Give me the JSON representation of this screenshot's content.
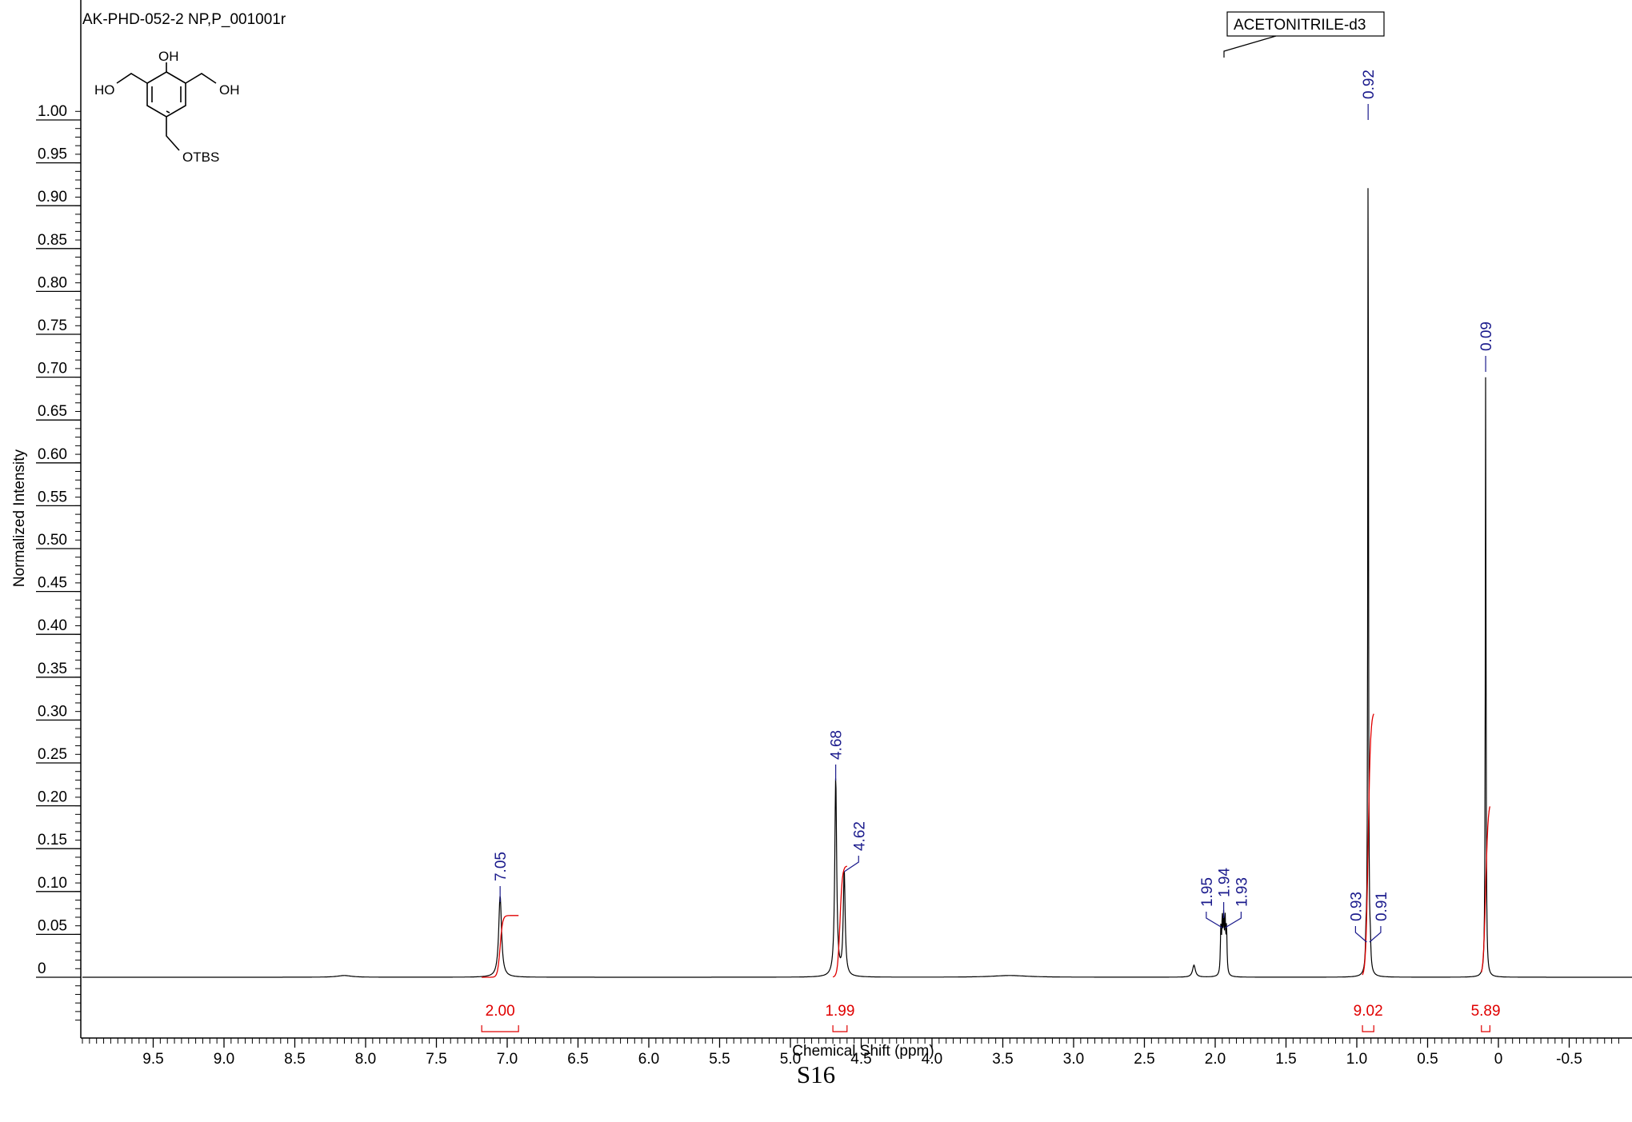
{
  "sample_label": "AK-PHD-052-2 NP,P_001001r",
  "solvent_label": "ACETONITRILE-d3",
  "page_label": "S16",
  "structure": {
    "oh_top": "OH",
    "ho_left": "HO",
    "oh_right": "OH",
    "otbs": "OTBS"
  },
  "colors": {
    "spectrum": "#000000",
    "peak_labels": "#1a1a8c",
    "integrals": "#e00000"
  },
  "chart_data": {
    "type": "line",
    "xlabel": "Chemical Shift (ppm)",
    "ylabel": "Normalized Intensity",
    "xlim": [
      10.0,
      -0.9
    ],
    "ylim": [
      -0.08,
      1.0
    ],
    "x_reversed": true,
    "x_ticks": [
      {
        "value": 9.5,
        "label": "9.5"
      },
      {
        "value": 9.0,
        "label": "9.0"
      },
      {
        "value": 8.5,
        "label": "8.5"
      },
      {
        "value": 8.0,
        "label": "8.0"
      },
      {
        "value": 7.5,
        "label": "7.5"
      },
      {
        "value": 7.0,
        "label": "7.0"
      },
      {
        "value": 6.5,
        "label": "6.5"
      },
      {
        "value": 6.0,
        "label": "6.0"
      },
      {
        "value": 5.5,
        "label": "5.5"
      },
      {
        "value": 5.0,
        "label": "5.0"
      },
      {
        "value": 4.5,
        "label": "4.5"
      },
      {
        "value": 4.0,
        "label": "4.0"
      },
      {
        "value": 3.5,
        "label": "3.5"
      },
      {
        "value": 3.0,
        "label": "3.0"
      },
      {
        "value": 2.5,
        "label": "2.5"
      },
      {
        "value": 2.0,
        "label": "2.0"
      },
      {
        "value": 1.5,
        "label": "1.5"
      },
      {
        "value": 1.0,
        "label": "1.0"
      },
      {
        "value": 0.5,
        "label": "0.5"
      },
      {
        "value": 0.0,
        "label": "0"
      },
      {
        "value": -0.5,
        "label": "-0.5"
      }
    ],
    "y_ticks": [
      {
        "value": 1.0,
        "label": "1.00"
      },
      {
        "value": 0.95,
        "label": "0.95"
      },
      {
        "value": 0.9,
        "label": "0.90"
      },
      {
        "value": 0.85,
        "label": "0.85"
      },
      {
        "value": 0.8,
        "label": "0.80"
      },
      {
        "value": 0.75,
        "label": "0.75"
      },
      {
        "value": 0.7,
        "label": "0.70"
      },
      {
        "value": 0.65,
        "label": "0.65"
      },
      {
        "value": 0.6,
        "label": "0.60"
      },
      {
        "value": 0.55,
        "label": "0.55"
      },
      {
        "value": 0.5,
        "label": "0.50"
      },
      {
        "value": 0.45,
        "label": "0.45"
      },
      {
        "value": 0.4,
        "label": "0.40"
      },
      {
        "value": 0.35,
        "label": "0.35"
      },
      {
        "value": 0.3,
        "label": "0.30"
      },
      {
        "value": 0.25,
        "label": "0.25"
      },
      {
        "value": 0.2,
        "label": "0.20"
      },
      {
        "value": 0.15,
        "label": "0.15"
      },
      {
        "value": 0.1,
        "label": "0.10"
      },
      {
        "value": 0.05,
        "label": "0.05"
      },
      {
        "value": 0.0,
        "label": "0"
      }
    ],
    "peaks": [
      {
        "ppm": 7.05,
        "intensity": 0.095,
        "width": 0.012
      },
      {
        "ppm": 4.68,
        "intensity": 0.232,
        "width": 0.008
      },
      {
        "ppm": 4.62,
        "intensity": 0.122,
        "width": 0.008
      },
      {
        "ppm": 2.15,
        "intensity": 0.014,
        "width": 0.012
      },
      {
        "ppm": 1.96,
        "intensity": 0.052,
        "width": 0.004
      },
      {
        "ppm": 1.95,
        "intensity": 0.058,
        "width": 0.004
      },
      {
        "ppm": 1.94,
        "intensity": 0.06,
        "width": 0.004
      },
      {
        "ppm": 1.93,
        "intensity": 0.058,
        "width": 0.004
      },
      {
        "ppm": 1.92,
        "intensity": 0.052,
        "width": 0.004
      },
      {
        "ppm": 0.935,
        "intensity": 0.03,
        "width": 0.004
      },
      {
        "ppm": 0.92,
        "intensity": 1.0,
        "width": 0.003
      },
      {
        "ppm": 0.905,
        "intensity": 0.025,
        "width": 0.004
      },
      {
        "ppm": 0.09,
        "intensity": 0.712,
        "width": 0.003
      },
      {
        "ppm": 8.15,
        "intensity": 0.002,
        "width": 0.06
      },
      {
        "ppm": 3.45,
        "intensity": 0.002,
        "width": 0.15
      }
    ],
    "peak_labels": [
      {
        "ppm": 7.05,
        "label": "7.05"
      },
      {
        "ppm": 4.68,
        "label": "4.68"
      },
      {
        "ppm": 4.62,
        "label": "4.62"
      },
      {
        "ppm": 1.95,
        "label": "1.95"
      },
      {
        "ppm": 1.94,
        "label": "1.94"
      },
      {
        "ppm": 1.93,
        "label": "1.93"
      },
      {
        "ppm": 0.93,
        "label": "0.93"
      },
      {
        "ppm": 0.92,
        "label": "0.92"
      },
      {
        "ppm": 0.91,
        "label": "0.91"
      },
      {
        "ppm": 0.09,
        "label": "0.09"
      }
    ],
    "integrals": [
      {
        "from": 7.18,
        "to": 6.92,
        "value": "2.00"
      },
      {
        "from": 4.7,
        "to": 4.6,
        "value": "1.99"
      },
      {
        "from": 0.96,
        "to": 0.88,
        "value": "9.02"
      },
      {
        "from": 0.12,
        "to": 0.06,
        "value": "5.89"
      }
    ]
  }
}
